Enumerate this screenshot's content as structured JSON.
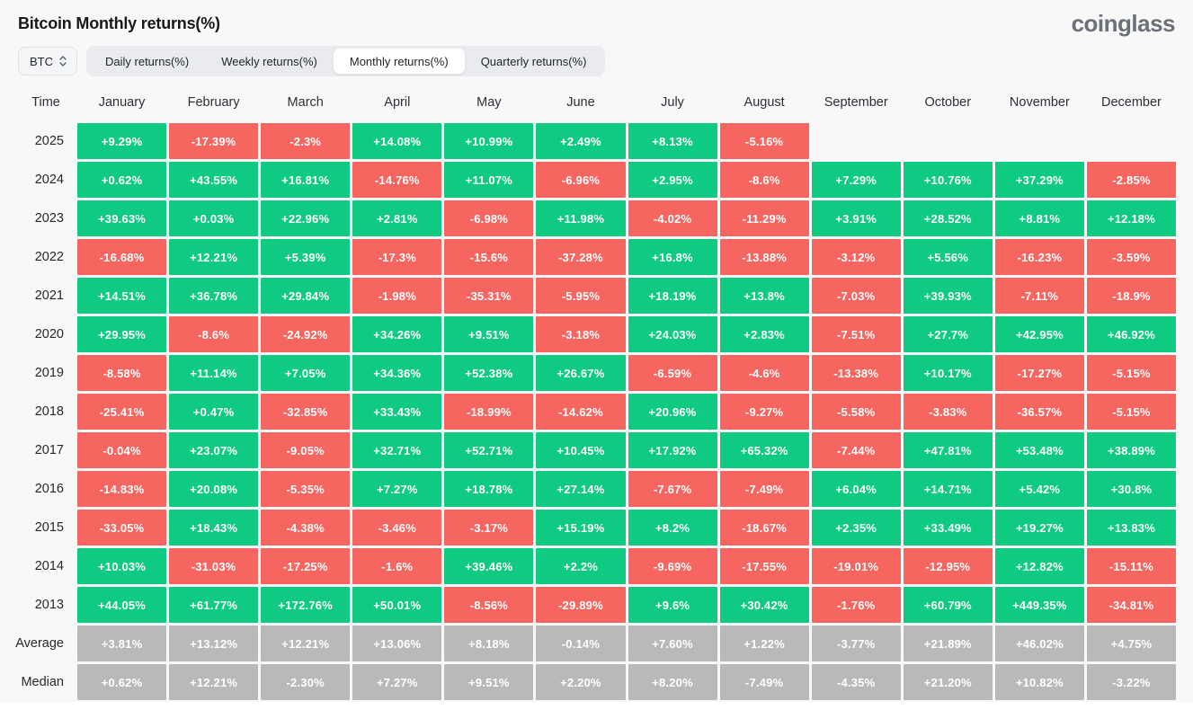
{
  "page": {
    "title": "Bitcoin Monthly returns(%)",
    "logo": "coinglass"
  },
  "controls": {
    "coin_selector": {
      "value": "BTC",
      "icon": "updown-chevron-icon"
    },
    "tabs": [
      {
        "label": "Daily returns(%)",
        "active": false
      },
      {
        "label": "Weekly returns(%)",
        "active": false
      },
      {
        "label": "Monthly returns(%)",
        "active": true
      },
      {
        "label": "Quarterly returns(%)",
        "active": false
      }
    ]
  },
  "colors": {
    "positive": "#0ECB81",
    "negative": "#F6655F",
    "neutral": "#B9B9B9",
    "page-bg": "#F8F8F9"
  },
  "chart_data": {
    "type": "heatmap",
    "title": "Bitcoin Monthly returns(%)",
    "row_header": "Time",
    "columns": [
      "January",
      "February",
      "March",
      "April",
      "May",
      "June",
      "July",
      "August",
      "September",
      "October",
      "November",
      "December"
    ],
    "color_coding": {
      "positive": "#0ECB81",
      "negative": "#F6655F",
      "summary_rows": "#B9B9B9",
      "empty": "transparent"
    },
    "rows": [
      {
        "label": "2025",
        "summary": false,
        "values": [
          "+9.29%",
          "-17.39%",
          "-2.3%",
          "+14.08%",
          "+10.99%",
          "+2.49%",
          "+8.13%",
          "-5.16%",
          "",
          "",
          "",
          ""
        ]
      },
      {
        "label": "2024",
        "summary": false,
        "values": [
          "+0.62%",
          "+43.55%",
          "+16.81%",
          "-14.76%",
          "+11.07%",
          "-6.96%",
          "+2.95%",
          "-8.6%",
          "+7.29%",
          "+10.76%",
          "+37.29%",
          "-2.85%"
        ]
      },
      {
        "label": "2023",
        "summary": false,
        "values": [
          "+39.63%",
          "+0.03%",
          "+22.96%",
          "+2.81%",
          "-6.98%",
          "+11.98%",
          "-4.02%",
          "-11.29%",
          "+3.91%",
          "+28.52%",
          "+8.81%",
          "+12.18%"
        ]
      },
      {
        "label": "2022",
        "summary": false,
        "values": [
          "-16.68%",
          "+12.21%",
          "+5.39%",
          "-17.3%",
          "-15.6%",
          "-37.28%",
          "+16.8%",
          "-13.88%",
          "-3.12%",
          "+5.56%",
          "-16.23%",
          "-3.59%"
        ]
      },
      {
        "label": "2021",
        "summary": false,
        "values": [
          "+14.51%",
          "+36.78%",
          "+29.84%",
          "-1.98%",
          "-35.31%",
          "-5.95%",
          "+18.19%",
          "+13.8%",
          "-7.03%",
          "+39.93%",
          "-7.11%",
          "-18.9%"
        ]
      },
      {
        "label": "2020",
        "summary": false,
        "values": [
          "+29.95%",
          "-8.6%",
          "-24.92%",
          "+34.26%",
          "+9.51%",
          "-3.18%",
          "+24.03%",
          "+2.83%",
          "-7.51%",
          "+27.7%",
          "+42.95%",
          "+46.92%"
        ]
      },
      {
        "label": "2019",
        "summary": false,
        "values": [
          "-8.58%",
          "+11.14%",
          "+7.05%",
          "+34.36%",
          "+52.38%",
          "+26.67%",
          "-6.59%",
          "-4.6%",
          "-13.38%",
          "+10.17%",
          "-17.27%",
          "-5.15%"
        ]
      },
      {
        "label": "2018",
        "summary": false,
        "values": [
          "-25.41%",
          "+0.47%",
          "-32.85%",
          "+33.43%",
          "-18.99%",
          "-14.62%",
          "+20.96%",
          "-9.27%",
          "-5.58%",
          "-3.83%",
          "-36.57%",
          "-5.15%"
        ]
      },
      {
        "label": "2017",
        "summary": false,
        "values": [
          "-0.04%",
          "+23.07%",
          "-9.05%",
          "+32.71%",
          "+52.71%",
          "+10.45%",
          "+17.92%",
          "+65.32%",
          "-7.44%",
          "+47.81%",
          "+53.48%",
          "+38.89%"
        ]
      },
      {
        "label": "2016",
        "summary": false,
        "values": [
          "-14.83%",
          "+20.08%",
          "-5.35%",
          "+7.27%",
          "+18.78%",
          "+27.14%",
          "-7.67%",
          "-7.49%",
          "+6.04%",
          "+14.71%",
          "+5.42%",
          "+30.8%"
        ]
      },
      {
        "label": "2015",
        "summary": false,
        "values": [
          "-33.05%",
          "+18.43%",
          "-4.38%",
          "-3.46%",
          "-3.17%",
          "+15.19%",
          "+8.2%",
          "-18.67%",
          "+2.35%",
          "+33.49%",
          "+19.27%",
          "+13.83%"
        ]
      },
      {
        "label": "2014",
        "summary": false,
        "values": [
          "+10.03%",
          "-31.03%",
          "-17.25%",
          "-1.6%",
          "+39.46%",
          "+2.2%",
          "-9.69%",
          "-17.55%",
          "-19.01%",
          "-12.95%",
          "+12.82%",
          "-15.11%"
        ]
      },
      {
        "label": "2013",
        "summary": false,
        "values": [
          "+44.05%",
          "+61.77%",
          "+172.76%",
          "+50.01%",
          "-8.56%",
          "-29.89%",
          "+9.6%",
          "+30.42%",
          "-1.76%",
          "+60.79%",
          "+449.35%",
          "-34.81%"
        ]
      },
      {
        "label": "Average",
        "summary": true,
        "values": [
          "+3.81%",
          "+13.12%",
          "+12.21%",
          "+13.06%",
          "+8.18%",
          "-0.14%",
          "+7.60%",
          "+1.22%",
          "-3.77%",
          "+21.89%",
          "+46.02%",
          "+4.75%"
        ]
      },
      {
        "label": "Median",
        "summary": true,
        "values": [
          "+0.62%",
          "+12.21%",
          "-2.30%",
          "+7.27%",
          "+9.51%",
          "+2.20%",
          "+8.20%",
          "-7.49%",
          "-4.35%",
          "+21.20%",
          "+10.82%",
          "-3.22%"
        ]
      }
    ]
  }
}
